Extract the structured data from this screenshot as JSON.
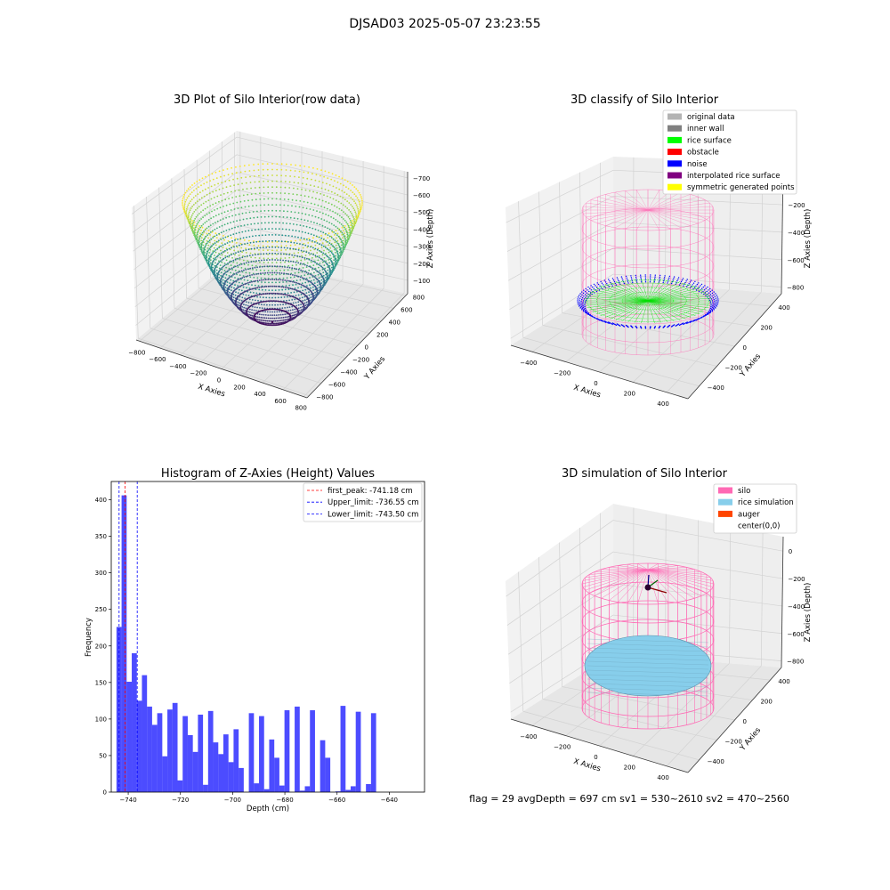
{
  "suptitle": "DJSAD03 2025-05-07 23:23:55",
  "footer": "flag = 29  avgDepth = 697 cm  sv1 = 530~2610  sv2 = 470~2560",
  "chart_data": [
    {
      "type": "scatter3d",
      "title": "3D Plot of Silo Interior(row data)",
      "xlabel": "X Axies",
      "ylabel": "Y Axies",
      "zlabel": "Z Axies (Depth)",
      "x_ticks": [
        "−800",
        "−600",
        "−400",
        "−200",
        "0",
        "200",
        "400",
        "600",
        "800"
      ],
      "y_ticks": [
        "−800",
        "−600",
        "−400",
        "−200",
        "0",
        "200",
        "400",
        "600",
        "800"
      ],
      "z_ticks": [
        "−700",
        "−600",
        "−500",
        "−400",
        "−300",
        "−200",
        "−100"
      ],
      "xlim": [
        -800,
        800
      ],
      "ylim": [
        -800,
        800
      ],
      "zlim": [
        -760,
        -80
      ],
      "surface": "paraboloid bowl, rim radius ~760 at z ~ -120, bottom z ~ -745",
      "colormap": "viridis"
    },
    {
      "type": "scatter3d",
      "title": "3D classify of Silo Interior",
      "xlabel": "X Axies",
      "ylabel": "Y Axies",
      "zlabel": "Z Axies (Depth)",
      "x_ticks": [
        "−400",
        "−200",
        "0",
        "200",
        "400"
      ],
      "y_ticks": [
        "−400",
        "−200",
        "0",
        "200",
        "400"
      ],
      "z_ticks": [
        "−800",
        "−600",
        "−400",
        "−200",
        "0"
      ],
      "legend": [
        {
          "label": "original data",
          "color": "#b3b3b3"
        },
        {
          "label": "inner wall",
          "color": "#808080"
        },
        {
          "label": "rice surface",
          "color": "#00ff00"
        },
        {
          "label": "obstacle",
          "color": "#ff0000"
        },
        {
          "label": "noise",
          "color": "#0000ff"
        },
        {
          "label": "interpolated rice surface",
          "color": "#800080"
        },
        {
          "label": "symmetric generated points",
          "color": "#ffff00"
        }
      ],
      "legend_position": "top-right",
      "silo_color": "#ff69b4"
    },
    {
      "type": "bar",
      "title": "Histogram of Z-Axies (Height) Values",
      "xlabel": "Depth (cm)",
      "ylabel": "Frequency",
      "x_ticks": [
        "−740",
        "−720",
        "−700",
        "−680",
        "−660",
        "−640"
      ],
      "y_ticks": [
        "0",
        "50",
        "100",
        "150",
        "200",
        "250",
        "300",
        "350",
        "400"
      ],
      "xlim": [
        -746.5,
        -626.5
      ],
      "ylim": [
        0,
        425
      ],
      "bin_start": -744.5,
      "bin_width": 1.95,
      "values": [
        226,
        406,
        151,
        190,
        125,
        160,
        117,
        92,
        108,
        49,
        113,
        122,
        16,
        104,
        78,
        55,
        106,
        10,
        111,
        68,
        52,
        79,
        41,
        86,
        33,
        0,
        108,
        12,
        104,
        4,
        72,
        47,
        9,
        112,
        0,
        117,
        2,
        8,
        112,
        0,
        71,
        47,
        0,
        1,
        118,
        3,
        8,
        110,
        0,
        11,
        108,
        0
      ],
      "bar_color": "#0000ff",
      "vlines": [
        {
          "label": "first_peak: -741.18 cm",
          "value": -741.18,
          "color": "#ff0000"
        },
        {
          "label": "Upper_limit: -736.55 cm",
          "value": -736.55,
          "color": "#0000ff"
        },
        {
          "label": "Lower_limit: -743.50 cm",
          "value": -743.5,
          "color": "#0000ff"
        }
      ],
      "legend_position": "top-right"
    },
    {
      "type": "surface3d",
      "title": "3D simulation of Silo Interior",
      "xlabel": "X Axies",
      "ylabel": "Y Axies",
      "zlabel": "Z Axies (Depth)",
      "x_ticks": [
        "−400",
        "−200",
        "0",
        "200",
        "400"
      ],
      "y_ticks": [
        "−400",
        "−200",
        "0",
        "200",
        "400"
      ],
      "z_ticks": [
        "−800",
        "−600",
        "−400",
        "−200",
        "0"
      ],
      "legend": [
        {
          "label": "silo",
          "color": "#ff69b4"
        },
        {
          "label": "rice simulation",
          "color": "#87ceeb"
        },
        {
          "label": "auger",
          "color": "#ff4500"
        },
        {
          "label": "center(0,0)",
          "color": ""
        }
      ],
      "legend_position": "top-right"
    }
  ]
}
